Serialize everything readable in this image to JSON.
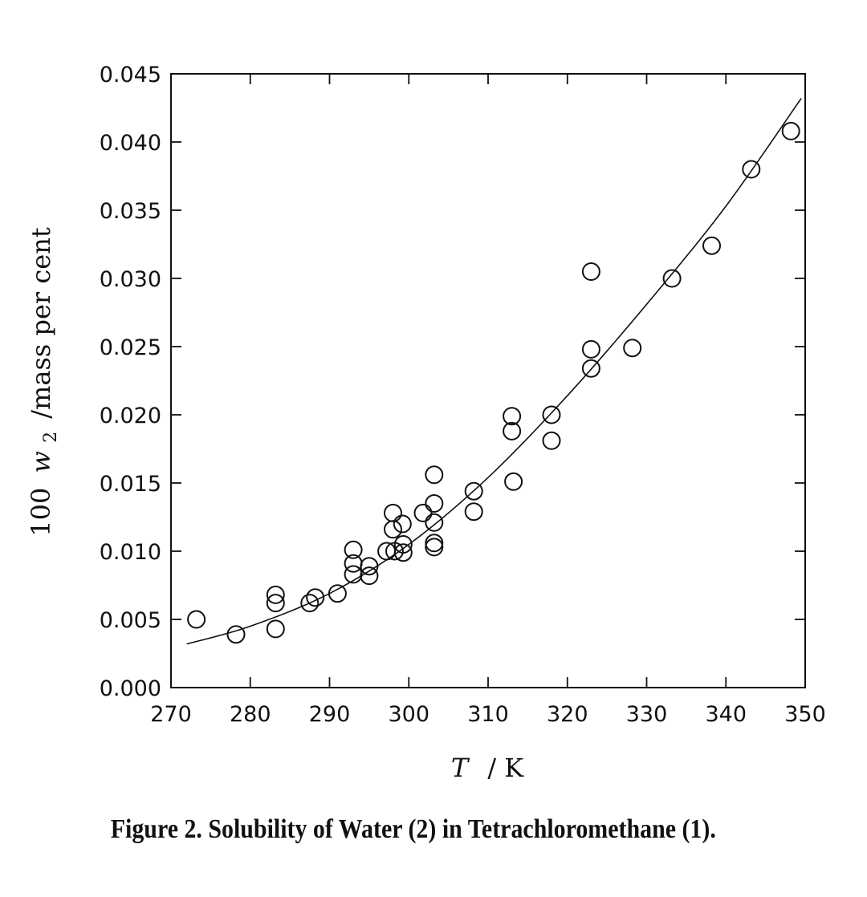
{
  "chart_data": {
    "type": "scatter",
    "caption": "Figure 2. Solubility of Water (2) in Tetrachloromethane (1).",
    "xlabel_italic": "T",
    "xlabel_unit": "/ K",
    "ylabel_prefix": "100",
    "ylabel_var": "w",
    "ylabel_sub": "2",
    "ylabel_unit": "/mass per cent",
    "xlim": [
      270,
      350
    ],
    "ylim": [
      0.0,
      0.045
    ],
    "x_ticks": [
      "270",
      "280",
      "290",
      "300",
      "310",
      "320",
      "330",
      "340",
      "350"
    ],
    "y_ticks": [
      "0.000",
      "0.005",
      "0.010",
      "0.015",
      "0.020",
      "0.025",
      "0.030",
      "0.035",
      "0.040",
      "0.045"
    ],
    "grid": false,
    "points": [
      {
        "x": 273.2,
        "y": 0.005
      },
      {
        "x": 278.2,
        "y": 0.0039
      },
      {
        "x": 283.2,
        "y": 0.0068
      },
      {
        "x": 283.2,
        "y": 0.0062
      },
      {
        "x": 283.2,
        "y": 0.0043
      },
      {
        "x": 287.5,
        "y": 0.0062
      },
      {
        "x": 288.2,
        "y": 0.0066
      },
      {
        "x": 291.0,
        "y": 0.0069
      },
      {
        "x": 293.0,
        "y": 0.0101
      },
      {
        "x": 293.0,
        "y": 0.0091
      },
      {
        "x": 293.0,
        "y": 0.0083
      },
      {
        "x": 295.0,
        "y": 0.0089
      },
      {
        "x": 295.0,
        "y": 0.0082
      },
      {
        "x": 297.2,
        "y": 0.01
      },
      {
        "x": 298.0,
        "y": 0.0128
      },
      {
        "x": 298.0,
        "y": 0.0116
      },
      {
        "x": 298.2,
        "y": 0.01
      },
      {
        "x": 299.2,
        "y": 0.012
      },
      {
        "x": 299.3,
        "y": 0.0105
      },
      {
        "x": 299.3,
        "y": 0.0099
      },
      {
        "x": 301.8,
        "y": 0.0128
      },
      {
        "x": 303.2,
        "y": 0.0156
      },
      {
        "x": 303.2,
        "y": 0.0135
      },
      {
        "x": 303.2,
        "y": 0.0121
      },
      {
        "x": 303.2,
        "y": 0.0106
      },
      {
        "x": 303.2,
        "y": 0.0103
      },
      {
        "x": 308.2,
        "y": 0.0144
      },
      {
        "x": 308.2,
        "y": 0.0129
      },
      {
        "x": 313.0,
        "y": 0.0199
      },
      {
        "x": 313.0,
        "y": 0.0188
      },
      {
        "x": 313.2,
        "y": 0.0151
      },
      {
        "x": 318.0,
        "y": 0.02
      },
      {
        "x": 318.0,
        "y": 0.0181
      },
      {
        "x": 323.0,
        "y": 0.0305
      },
      {
        "x": 323.0,
        "y": 0.0248
      },
      {
        "x": 323.0,
        "y": 0.0234
      },
      {
        "x": 328.2,
        "y": 0.0249
      },
      {
        "x": 333.2,
        "y": 0.03
      },
      {
        "x": 338.2,
        "y": 0.0324
      },
      {
        "x": 343.2,
        "y": 0.038
      },
      {
        "x": 348.2,
        "y": 0.0408
      }
    ],
    "fit_curve": {
      "x": [
        272,
        280,
        290,
        300,
        310,
        320,
        330,
        340,
        349.5
      ],
      "y": [
        0.0032,
        0.0045,
        0.0069,
        0.0105,
        0.0154,
        0.0214,
        0.0281,
        0.0353,
        0.0432
      ]
    }
  }
}
